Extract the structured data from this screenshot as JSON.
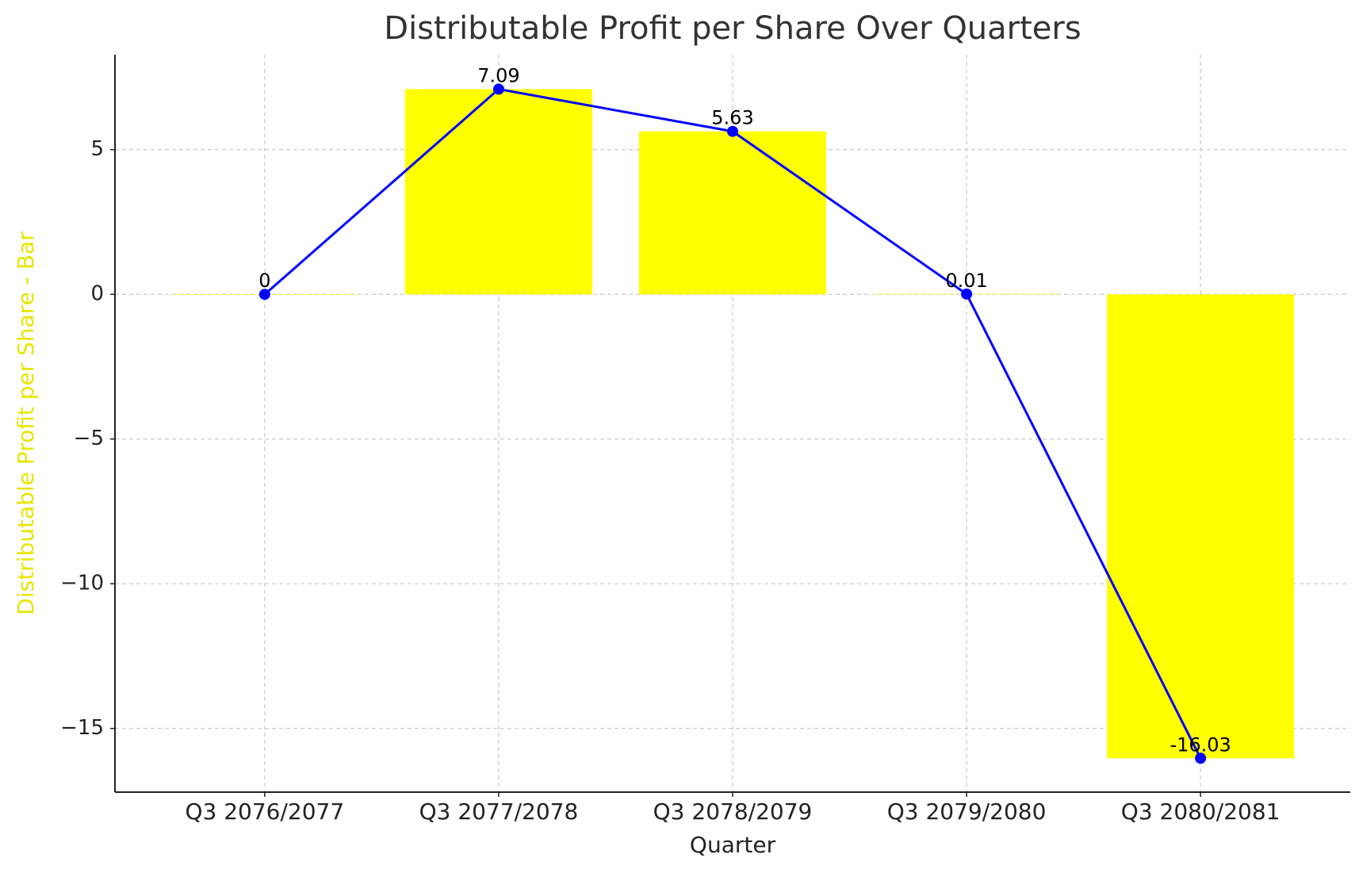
{
  "chart_data": {
    "type": "bar",
    "title": "Distributable Profit per Share Over Quarters",
    "x_label": "Quarter",
    "y_label": "Distributable Profit per Share - Bar",
    "y_label_color": "#e6e600",
    "categories": [
      "Q3 2076/2077",
      "Q3 2077/2078",
      "Q3 2078/2079",
      "Q3 2079/2080",
      "Q3 2080/2081"
    ],
    "series": [
      {
        "type": "bar",
        "color": "#ffff00",
        "values": [
          0,
          7.09,
          5.63,
          0.01,
          -16.03
        ]
      },
      {
        "type": "line",
        "color": "#0000ff",
        "markers": true,
        "data_labels": true,
        "values": [
          0,
          7.09,
          5.63,
          0.01,
          -16.03
        ]
      }
    ],
    "ylim": [
      -17.2,
      8.28
    ],
    "yticks": [
      {
        "value": -15,
        "label": "−15"
      },
      {
        "value": -10,
        "label": "−10"
      },
      {
        "value": -5,
        "label": "−5"
      },
      0,
      5
    ],
    "grid": true
  }
}
